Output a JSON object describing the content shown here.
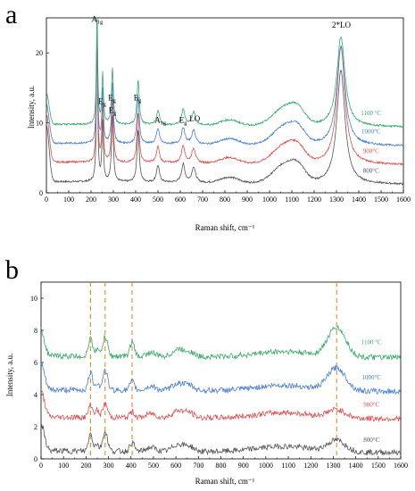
{
  "panels": [
    {
      "letter": "a",
      "chart_data": {
        "type": "line",
        "title": "",
        "xlabel": "Raman shift, cm⁻¹",
        "ylabel": "Intensity, a.u.",
        "xlim": [
          0,
          1600
        ],
        "ylim": [
          0,
          25
        ],
        "x_ticks": [
          "0",
          "100",
          "200",
          "300",
          "400",
          "500",
          "600",
          "700",
          "800",
          "900",
          "1000",
          "1100",
          "1200",
          "1300",
          "1400",
          "1500",
          "1600"
        ],
        "y_ticks": [
          "0",
          "10",
          "20"
        ],
        "series": [
          {
            "name": "800°C",
            "color": "#555555",
            "baseline": 1.6,
            "end_value": 1.6,
            "peak_scale": 1.0,
            "lo_height": 16.2
          },
          {
            "name": "900°C",
            "color": "#e05050",
            "baseline": 4.4,
            "end_value": 4.4,
            "peak_scale": 0.95,
            "lo_height": 16.8
          },
          {
            "name": "1000°C",
            "color": "#4a7fd0",
            "baseline": 7.1,
            "end_value": 7.2,
            "peak_scale": 0.9,
            "lo_height": 14.2
          },
          {
            "name": "1100 °C",
            "color": "#3aaa6a",
            "baseline": 9.8,
            "end_value": 9.8,
            "peak_scale": 0.85,
            "lo_height": 12.8
          }
        ],
        "peaks": [
          {
            "x": 227,
            "label": "A",
            "sub": "1g"
          },
          {
            "x": 252,
            "label": "E",
            "sub": "g"
          },
          {
            "x": 295,
            "label": "E",
            "sub": "g"
          },
          {
            "x": 301,
            "label": "E",
            "sub": "g"
          },
          {
            "x": 411,
            "label": "E",
            "sub": "g"
          },
          {
            "x": 500,
            "label": "A",
            "sub": "1g"
          },
          {
            "x": 613,
            "label": "E",
            "sub": "g"
          },
          {
            "x": 660,
            "label": "LO",
            "sub": ""
          },
          {
            "x": 1320,
            "label": "2*LO",
            "sub": ""
          }
        ]
      }
    },
    {
      "letter": "b",
      "chart_data": {
        "type": "line",
        "title": "",
        "xlabel": "Raman shift, cm⁻¹",
        "ylabel": "Intensity, a.u.",
        "xlim": [
          0,
          1600
        ],
        "ylim": [
          0,
          11
        ],
        "x_ticks": [
          "0",
          "100",
          "200",
          "300",
          "400",
          "500",
          "600",
          "700",
          "800",
          "900",
          "1000",
          "1100",
          "1200",
          "1300",
          "1400",
          "1500",
          "1600"
        ],
        "y_ticks": [
          "0",
          "2",
          "4",
          "6",
          "8",
          "10"
        ],
        "dashed_lines_x": [
          220,
          285,
          405,
          1315
        ],
        "series": [
          {
            "name": "800°C",
            "color": "#555555",
            "baseline": 0.5,
            "end_value": 0.3,
            "lo_height": 0.7
          },
          {
            "name": "900°C",
            "color": "#e05050",
            "baseline": 2.6,
            "end_value": 2.5,
            "lo_height": 0.5
          },
          {
            "name": "1000°C",
            "color": "#4a7fd0",
            "baseline": 4.3,
            "end_value": 4.2,
            "lo_height": 1.4
          },
          {
            "name": "1100 °C",
            "color": "#3aaa6a",
            "baseline": 6.4,
            "end_value": 6.4,
            "lo_height": 1.8
          }
        ]
      }
    }
  ]
}
